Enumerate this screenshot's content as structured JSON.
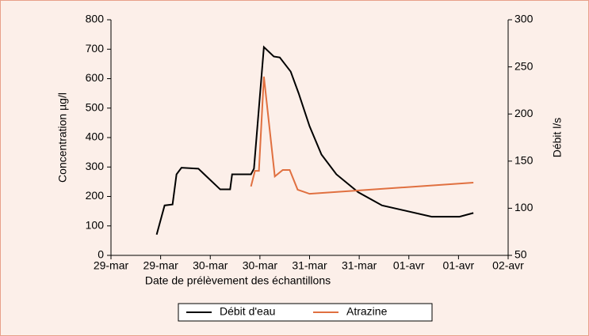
{
  "chart_data": {
    "type": "line",
    "x_label": "Date de prélèvement des échantillons",
    "y_label": "Concentration µg/l",
    "y2_label": "Débit l/s",
    "xlim": [
      0,
      4
    ],
    "xticks": [
      {
        "value": 0,
        "label": "29-mar"
      },
      {
        "value": 0.5,
        "label": "29-mar"
      },
      {
        "value": 1,
        "label": "30-mar"
      },
      {
        "value": 1.5,
        "label": "30-mar"
      },
      {
        "value": 2,
        "label": "31-mar"
      },
      {
        "value": 2.5,
        "label": "31-mar"
      },
      {
        "value": 3,
        "label": "01-avr"
      },
      {
        "value": 3.5,
        "label": "01-avr"
      },
      {
        "value": 4,
        "label": "02-avr"
      }
    ],
    "ylim": [
      0,
      800
    ],
    "yticks": [
      0,
      100,
      200,
      300,
      400,
      500,
      600,
      700,
      800
    ],
    "y2lim": [
      50,
      300
    ],
    "y2ticks": [
      50,
      100,
      150,
      200,
      250,
      300
    ],
    "series": [
      {
        "name": "Débit d'eau",
        "color": "#000000",
        "axis": "y2",
        "x": [
          0.46,
          0.54,
          0.62,
          0.66,
          0.71,
          0.88,
          1.1,
          1.2,
          1.22,
          1.41,
          1.44,
          1.54,
          1.64,
          1.7,
          1.81,
          1.89,
          2.0,
          2.12,
          2.27,
          2.49,
          2.73,
          3.23,
          3.51,
          3.65
        ],
        "values": [
          72,
          103,
          104,
          136,
          143,
          142,
          120,
          120,
          136,
          136,
          142,
          271,
          261,
          260,
          245,
          222,
          187,
          157,
          136,
          117,
          103,
          91,
          91,
          95
        ]
      },
      {
        "name": "Atrazine",
        "color": "#e07040",
        "axis": "y",
        "x": [
          1.41,
          1.45,
          1.49,
          1.54,
          1.65,
          1.73,
          1.8,
          1.88,
          2.0,
          3.65
        ],
        "values": [
          234,
          287,
          287,
          607,
          268,
          290,
          290,
          223,
          209,
          247
        ]
      }
    ]
  }
}
